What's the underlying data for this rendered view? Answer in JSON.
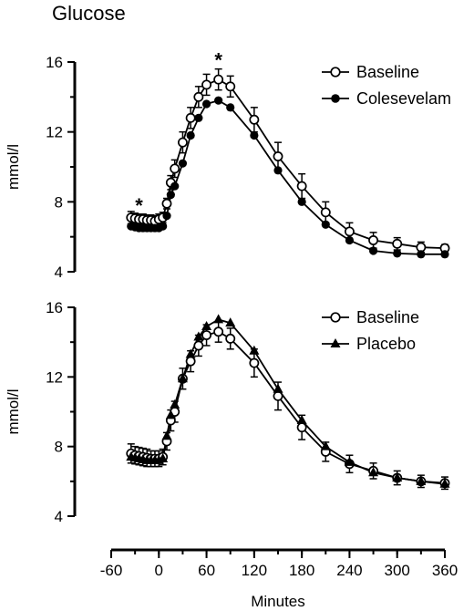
{
  "figure": {
    "title": "Glucose"
  },
  "x_axis": {
    "label": "Minutes",
    "ticks": [
      "-60",
      "0",
      "60",
      "120",
      "180",
      "240",
      "300",
      "360"
    ],
    "tick_values": [
      -60,
      0,
      60,
      120,
      180,
      240,
      300,
      360
    ],
    "minor_step": 30,
    "range": [
      -60,
      360
    ]
  },
  "chart_data": [
    {
      "type": "line",
      "ylabel": "mmol/l",
      "ylim": [
        4,
        16
      ],
      "yticks": [
        "4",
        "8",
        "12",
        "16"
      ],
      "ytick_values": [
        4,
        8,
        12,
        16
      ],
      "legend_position": "top-right",
      "annotations": [
        {
          "text": "*",
          "x": -25
        },
        {
          "text": "*",
          "x": 75
        }
      ],
      "x": [
        -35,
        -30,
        -25,
        -20,
        -15,
        -10,
        -5,
        0,
        5,
        10,
        15,
        20,
        30,
        40,
        50,
        60,
        75,
        90,
        120,
        150,
        180,
        210,
        240,
        270,
        300,
        330,
        360
      ],
      "series": [
        {
          "name": "Baseline",
          "marker": "open-circle",
          "values": [
            7.1,
            7.05,
            7.0,
            7.0,
            6.95,
            6.95,
            6.9,
            7.0,
            7.1,
            7.9,
            9.1,
            9.9,
            11.4,
            12.8,
            14.0,
            14.7,
            15.0,
            14.6,
            12.7,
            10.6,
            8.9,
            7.4,
            6.3,
            5.8,
            5.6,
            5.4,
            5.35
          ],
          "errors": [
            0.35,
            0.3,
            0.3,
            0.3,
            0.3,
            0.3,
            0.3,
            0.3,
            0.3,
            0.3,
            0.4,
            0.5,
            0.6,
            0.6,
            0.6,
            0.6,
            0.6,
            0.6,
            0.7,
            0.8,
            0.7,
            0.6,
            0.5,
            0.45,
            0.35,
            0.3,
            0.2
          ]
        },
        {
          "name": "Colesevelam",
          "marker": "filled-circle",
          "values": [
            6.6,
            6.55,
            6.5,
            6.5,
            6.5,
            6.5,
            6.5,
            6.5,
            6.6,
            7.2,
            8.4,
            8.9,
            10.2,
            11.8,
            12.8,
            13.6,
            13.8,
            13.4,
            11.8,
            9.8,
            8.0,
            6.7,
            5.8,
            5.2,
            5.05,
            5.0,
            5.0
          ]
        }
      ]
    },
    {
      "type": "line",
      "ylabel": "mmol/l",
      "ylim": [
        4,
        16
      ],
      "yticks": [
        "4",
        "8",
        "12",
        "16"
      ],
      "ytick_values": [
        4,
        8,
        12,
        16
      ],
      "legend_position": "top-right",
      "annotations": [],
      "x": [
        -35,
        -30,
        -25,
        -20,
        -15,
        -10,
        -5,
        0,
        5,
        10,
        15,
        20,
        30,
        40,
        50,
        60,
        75,
        90,
        120,
        150,
        180,
        210,
        240,
        270,
        300,
        330,
        360
      ],
      "series": [
        {
          "name": "Baseline",
          "marker": "open-circle",
          "values": [
            7.6,
            7.5,
            7.45,
            7.4,
            7.35,
            7.3,
            7.3,
            7.3,
            7.4,
            8.3,
            9.5,
            10.0,
            11.9,
            12.9,
            13.8,
            14.4,
            14.6,
            14.2,
            12.8,
            10.9,
            9.1,
            7.7,
            7.0,
            6.6,
            6.2,
            6.0,
            5.9
          ],
          "errors": [
            0.55,
            0.5,
            0.5,
            0.5,
            0.5,
            0.45,
            0.45,
            0.45,
            0.45,
            0.5,
            0.6,
            0.6,
            0.6,
            0.6,
            0.6,
            0.6,
            0.6,
            0.6,
            0.8,
            0.8,
            0.7,
            0.55,
            0.5,
            0.45,
            0.4,
            0.35,
            0.35
          ]
        },
        {
          "name": "Placebo",
          "marker": "filled-triangle",
          "values": [
            7.4,
            7.35,
            7.3,
            7.25,
            7.2,
            7.2,
            7.2,
            7.2,
            7.3,
            8.6,
            9.8,
            10.4,
            11.9,
            13.3,
            14.3,
            14.9,
            15.3,
            15.1,
            13.5,
            11.3,
            9.5,
            8.0,
            7.1,
            6.5,
            6.2,
            6.0,
            5.85
          ]
        }
      ]
    }
  ]
}
